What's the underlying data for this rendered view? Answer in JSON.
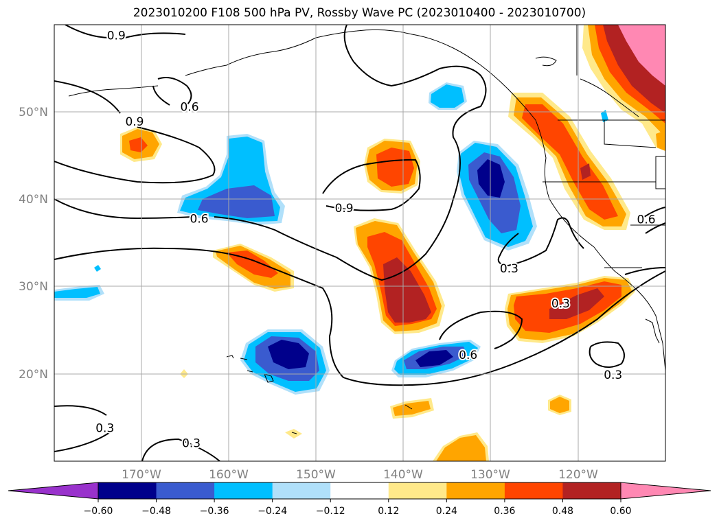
{
  "title": "2023010200 F108 500 hPa PV, Rossby Wave PC (2023010400 - 2023010700)",
  "map": {
    "lon_labels": [
      "170°W",
      "160°W",
      "150°W",
      "140°W",
      "130°W",
      "120°W"
    ],
    "lat_labels": [
      "50°N",
      "40°N",
      "30°N",
      "20°N"
    ],
    "lon_range": [
      -180,
      -110
    ],
    "lat_range": [
      10,
      60
    ],
    "grid": true
  },
  "contour_labels": [
    {
      "text": "0.9",
      "lon": -172.9,
      "lat": 58.8
    },
    {
      "text": "0.6",
      "lon": -164.5,
      "lat": 50.6
    },
    {
      "text": "0.9",
      "lon": -170.8,
      "lat": 48.9
    },
    {
      "text": "0.9",
      "lon": -146.8,
      "lat": 39.0
    },
    {
      "text": "0.6",
      "lon": -163.4,
      "lat": 37.8
    },
    {
      "text": "0.3",
      "lon": -127.9,
      "lat": 32.1
    },
    {
      "text": "0.3",
      "lon": -122.0,
      "lat": 28.1
    },
    {
      "text": "0.6",
      "lon": -132.6,
      "lat": 22.2
    },
    {
      "text": "0.3",
      "lon": -116.0,
      "lat": 19.9
    },
    {
      "text": "0.3",
      "lon": -174.2,
      "lat": 13.8
    },
    {
      "text": "0.3",
      "lon": -164.3,
      "lat": 12.1
    },
    {
      "text": "0.6",
      "lon": -112.2,
      "lat": 37.7
    }
  ],
  "colorbar": {
    "colors": [
      "#9932cc",
      "#00008b",
      "#3a5bcf",
      "#00bfff",
      "#b0e0fa",
      "#ffffff",
      "#ffe98a",
      "#ffa500",
      "#ff4500",
      "#b22222",
      "#ff88b3"
    ],
    "ticks": [
      "−0.60",
      "−0.48",
      "−0.36",
      "−0.24",
      "−0.12",
      "0.12",
      "0.24",
      "0.36",
      "0.48",
      "0.60"
    ]
  }
}
